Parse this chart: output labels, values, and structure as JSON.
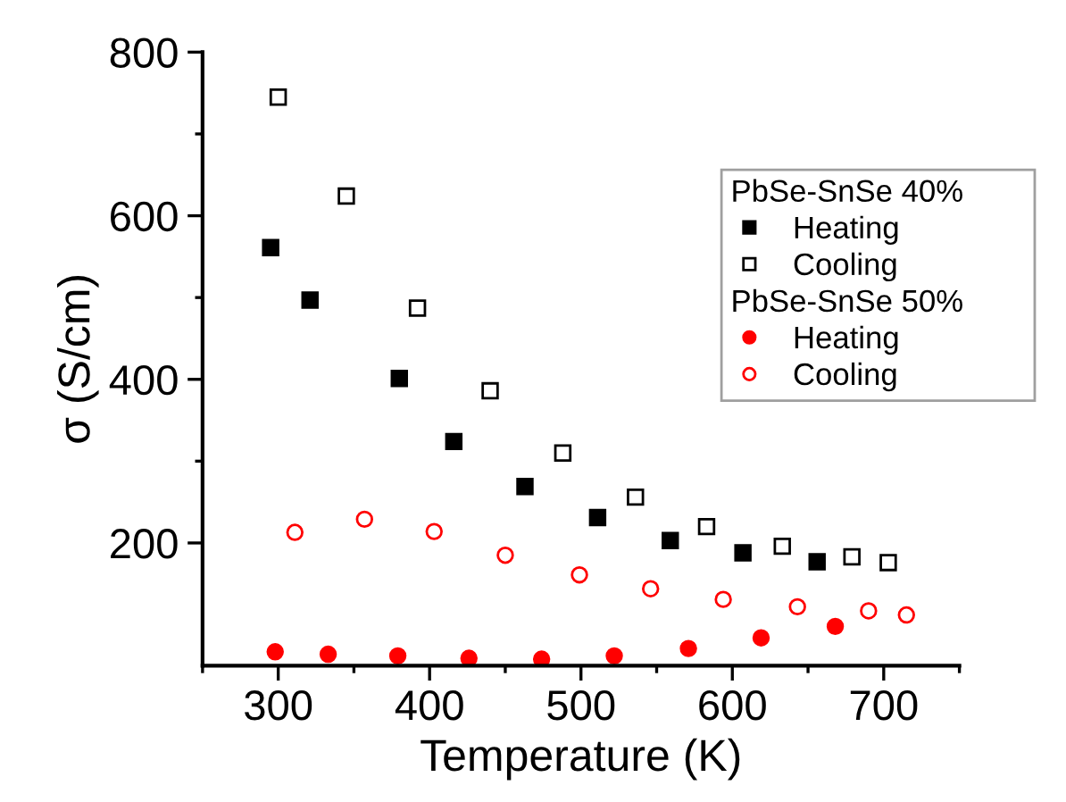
{
  "chart_data": {
    "type": "scatter",
    "xlabel": "Temperature (K)",
    "ylabel": "σ (S/cm)",
    "annotations": [
      "PbSe-SnSe 40%",
      "PbSe-SnSe 50%"
    ],
    "xlim": [
      250,
      750
    ],
    "ylim": [
      50,
      800
    ],
    "xticks": [
      {
        "value": 250,
        "label": null
      },
      300,
      {
        "value": 350,
        "label": null
      },
      400,
      {
        "value": 450,
        "label": null
      },
      500,
      {
        "value": 550,
        "label": null
      },
      600,
      {
        "value": 650,
        "label": null
      },
      700,
      {
        "value": 750,
        "label": null
      }
    ],
    "yticks": [
      200,
      {
        "value": 300,
        "label": null
      },
      400,
      {
        "value": 500,
        "label": null
      },
      600,
      {
        "value": 700,
        "label": null
      },
      800
    ],
    "legend": "right",
    "grid": false,
    "series": [
      {
        "name": "Heating",
        "color": "#000000",
        "marker": "square",
        "x": [
          295,
          321,
          380,
          416,
          463,
          511,
          559,
          607,
          656
        ],
        "values": [
          561,
          497,
          401,
          324,
          269,
          231,
          203,
          188,
          177
        ]
      },
      {
        "name": "Cooling",
        "color": "#000000",
        "marker": "square",
        "x": [
          300,
          345,
          392,
          440,
          488,
          536,
          583,
          633,
          679,
          703
        ],
        "values": [
          745,
          624,
          487,
          386,
          310,
          256,
          220,
          196,
          183,
          176
        ]
      },
      {
        "name": "Heating",
        "color": "#ff0000",
        "marker": "circle",
        "x": [
          298,
          333,
          379,
          426,
          474,
          522,
          571,
          619,
          668
        ],
        "values": [
          67,
          64,
          62,
          59,
          58,
          62,
          71,
          84,
          98
        ]
      },
      {
        "name": "Cooling",
        "color": "#ff0000",
        "marker": "circle",
        "x": [
          311,
          357,
          403,
          450,
          499,
          546,
          594,
          643,
          690,
          715
        ],
        "values": [
          213,
          229,
          214,
          185,
          161,
          144,
          131,
          122,
          117,
          112
        ]
      }
    ]
  }
}
